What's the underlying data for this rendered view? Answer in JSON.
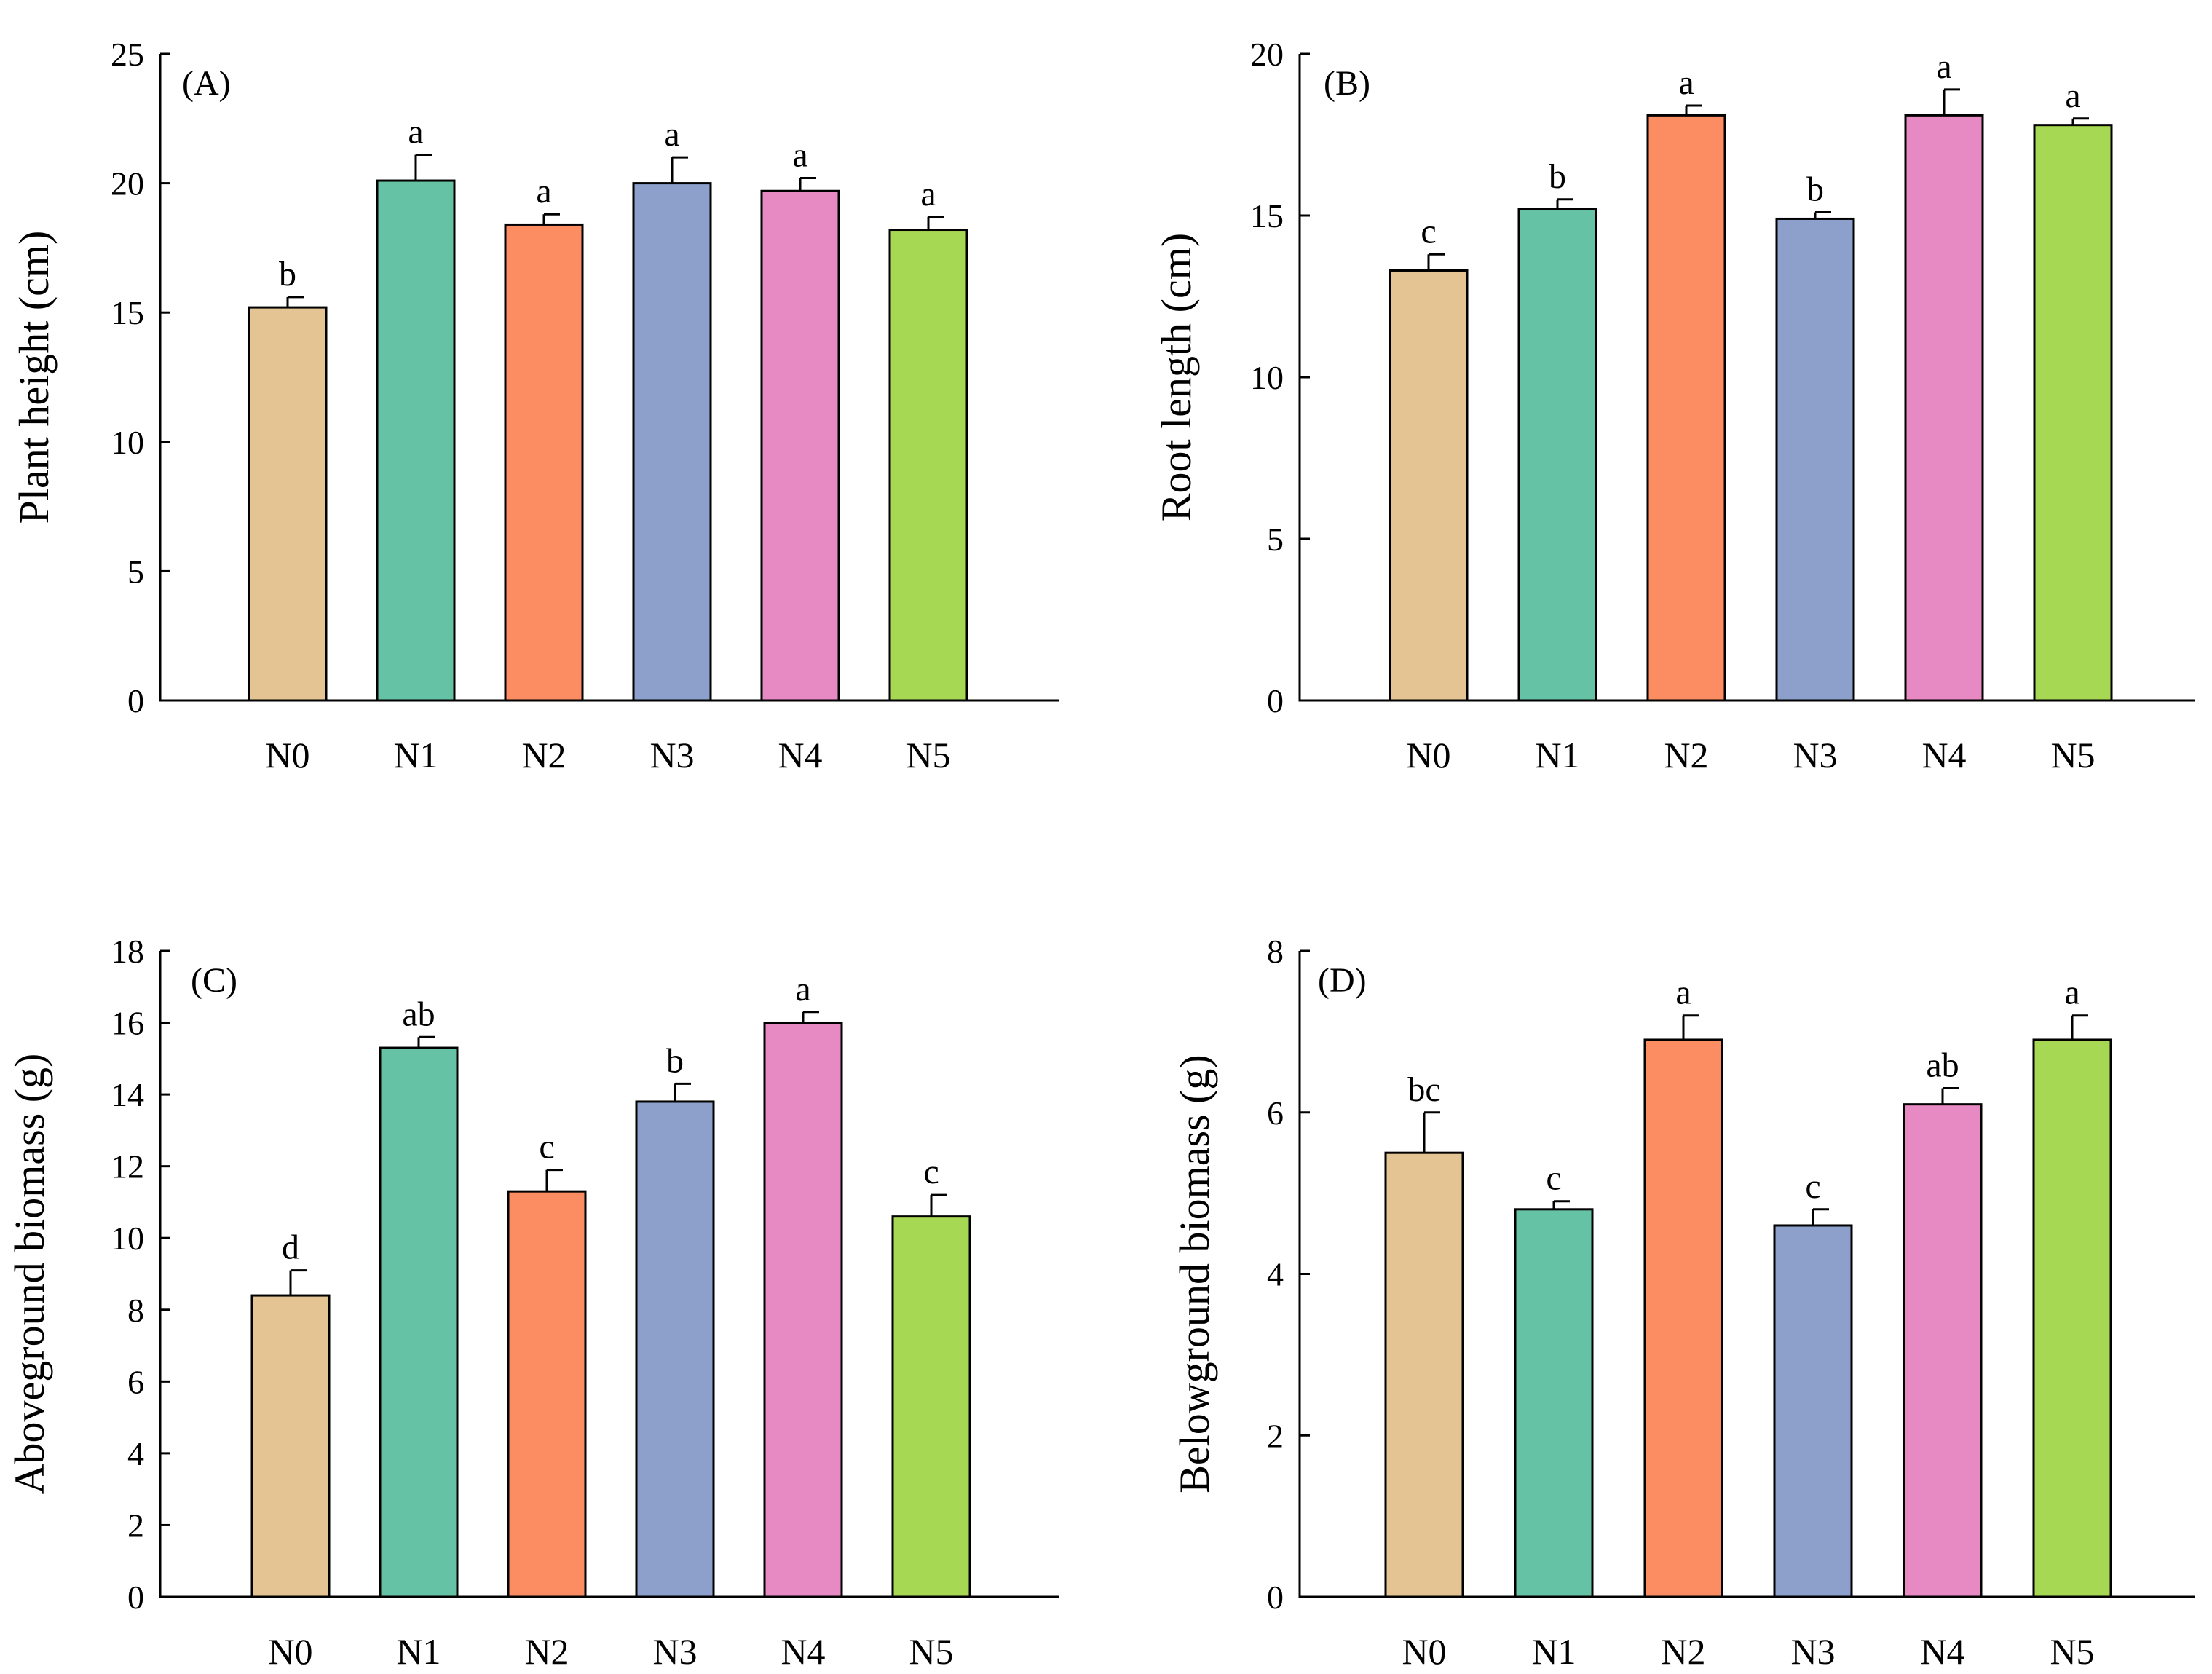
{
  "figure": {
    "colors": [
      "#e5c494",
      "#66c2a5",
      "#fc8d62",
      "#8da0cb",
      "#e78ac3",
      "#a6d854"
    ]
  },
  "chart_data": [
    {
      "panel": "(A)",
      "type": "bar",
      "categories": [
        "N0",
        "N1",
        "N2",
        "N3",
        "N4",
        "N5"
      ],
      "values": [
        15.2,
        20.1,
        18.4,
        20.0,
        19.7,
        18.2
      ],
      "errors": [
        0.4,
        1.0,
        0.4,
        1.0,
        0.5,
        0.5
      ],
      "letters": [
        "b",
        "a",
        "a",
        "a",
        "a",
        "a"
      ],
      "ylabel": "Plant height (cm)",
      "xlabel": "",
      "ylim": [
        0,
        25
      ],
      "yticks": [
        0,
        5,
        10,
        15,
        20,
        25
      ],
      "ytick_labels": [
        "0",
        "5",
        "10",
        "15",
        "20",
        "25"
      ]
    },
    {
      "panel": "(B)",
      "type": "bar",
      "categories": [
        "N0",
        "N1",
        "N2",
        "N3",
        "N4",
        "N5"
      ],
      "values": [
        13.3,
        15.2,
        18.1,
        14.9,
        18.1,
        17.8
      ],
      "errors": [
        0.5,
        0.3,
        0.3,
        0.2,
        0.8,
        0.2
      ],
      "letters": [
        "c",
        "b",
        "a",
        "b",
        "a",
        "a"
      ],
      "ylabel": "Root length (cm)",
      "xlabel": "",
      "ylim": [
        0,
        20
      ],
      "yticks": [
        0,
        5,
        10,
        15,
        20
      ],
      "ytick_labels": [
        "0",
        "5",
        "10",
        "15",
        "20"
      ]
    },
    {
      "panel": "(C)",
      "type": "bar",
      "categories": [
        "N0",
        "N1",
        "N2",
        "N3",
        "N4",
        "N5"
      ],
      "values": [
        8.4,
        15.3,
        11.3,
        13.8,
        16.0,
        10.6
      ],
      "errors": [
        0.7,
        0.3,
        0.6,
        0.5,
        0.3,
        0.6
      ],
      "letters": [
        "d",
        "ab",
        "c",
        "b",
        "a",
        "c"
      ],
      "ylabel": "Aboveground biomass (g)",
      "xlabel": "",
      "ylim": [
        0,
        18
      ],
      "yticks": [
        0,
        2,
        4,
        6,
        8,
        10,
        12,
        14,
        16,
        18
      ],
      "ytick_labels": [
        "0",
        "2",
        "4",
        "6",
        "8",
        "10",
        "12",
        "14",
        "16",
        "18"
      ]
    },
    {
      "panel": "(D)",
      "type": "bar",
      "categories": [
        "N0",
        "N1",
        "N2",
        "N3",
        "N4",
        "N5"
      ],
      "values": [
        5.5,
        4.8,
        6.9,
        4.6,
        6.1,
        6.9
      ],
      "errors": [
        0.5,
        0.1,
        0.3,
        0.2,
        0.2,
        0.3
      ],
      "letters": [
        "bc",
        "c",
        "a",
        "c",
        "ab",
        "a"
      ],
      "ylabel": "Belowground biomass (g)",
      "xlabel": "",
      "ylim": [
        0,
        8
      ],
      "yticks": [
        0,
        2,
        4,
        6,
        8
      ],
      "ytick_labels": [
        "0",
        "2",
        "4",
        "6",
        "8"
      ]
    }
  ]
}
